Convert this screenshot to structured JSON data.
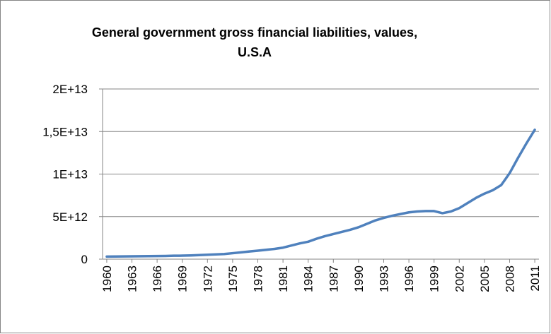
{
  "chart_data": {
    "type": "line",
    "title": "General government gross financial liabilities, values, U.S.A",
    "x": [
      1960,
      1961,
      1962,
      1963,
      1964,
      1965,
      1966,
      1967,
      1968,
      1969,
      1970,
      1971,
      1972,
      1973,
      1974,
      1975,
      1976,
      1977,
      1978,
      1979,
      1980,
      1981,
      1982,
      1983,
      1984,
      1985,
      1986,
      1987,
      1988,
      1989,
      1990,
      1991,
      1992,
      1993,
      1994,
      1995,
      1996,
      1997,
      1998,
      1999,
      2000,
      2001,
      2002,
      2003,
      2004,
      2005,
      2006,
      2007,
      2008,
      2009,
      2010,
      2011
    ],
    "xlim": [
      1959.5,
      2011.5
    ],
    "xticks": [
      1960,
      1963,
      1966,
      1969,
      1972,
      1975,
      1978,
      1981,
      1984,
      1987,
      1990,
      1993,
      1996,
      1999,
      2002,
      2005,
      2008,
      2011
    ],
    "series": [
      {
        "color": "#4f81bd",
        "values": [
          300000000000,
          310000000000,
          320000000000,
          330000000000,
          340000000000,
          350000000000,
          360000000000,
          370000000000,
          400000000000,
          410000000000,
          440000000000,
          480000000000,
          520000000000,
          560000000000,
          600000000000,
          700000000000,
          800000000000,
          900000000000,
          1000000000000,
          1100000000000,
          1200000000000,
          1350000000000,
          1600000000000,
          1850000000000,
          2050000000000,
          2400000000000,
          2700000000000,
          2950000000000,
          3200000000000,
          3450000000000,
          3750000000000,
          4150000000000,
          4550000000000,
          4850000000000,
          5100000000000,
          5300000000000,
          5500000000000,
          5600000000000,
          5650000000000,
          5650000000000,
          5400000000000,
          5600000000000,
          6000000000000,
          6600000000000,
          7200000000000,
          7700000000000,
          8100000000000,
          8700000000000,
          10100000000000,
          11900000000000,
          13600000000000,
          15200000000000
        ]
      }
    ],
    "ylim": [
      0,
      20000000000000
    ],
    "yticks": [
      0,
      {
        "value": 5000000000000,
        "label": "5E+12"
      },
      {
        "value": 10000000000000,
        "label": "1E+13"
      },
      {
        "value": 15000000000000,
        "label": "1,5E+13"
      },
      {
        "value": 20000000000000,
        "label": "2E+13"
      }
    ],
    "grid": true
  }
}
